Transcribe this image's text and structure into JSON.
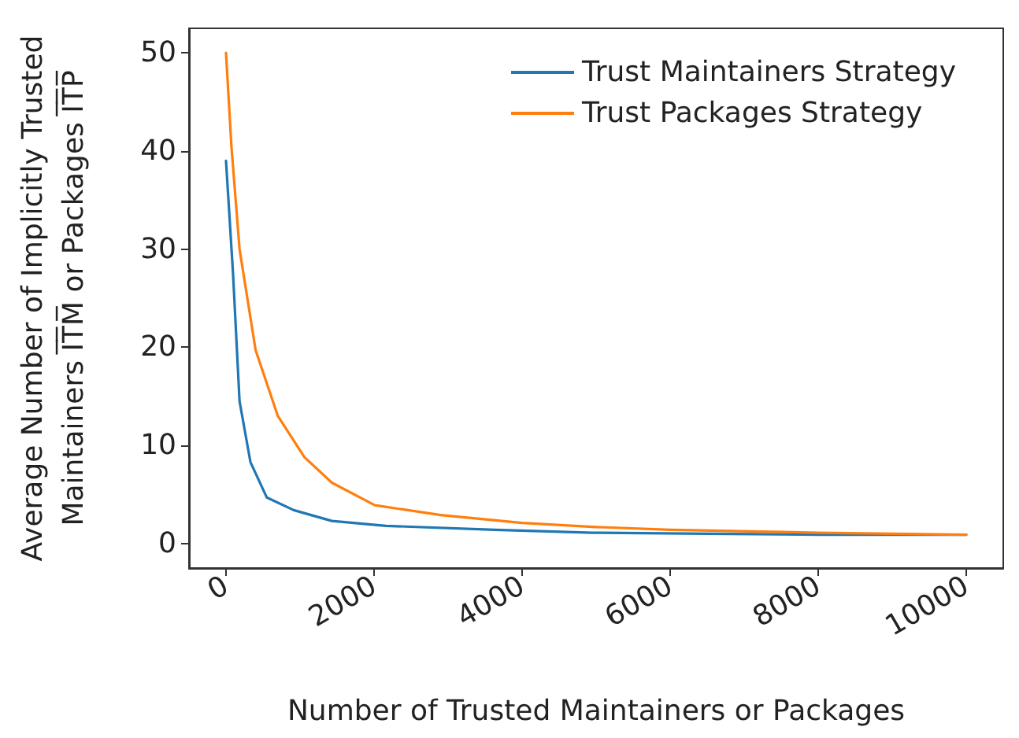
{
  "chart_data": {
    "type": "line",
    "xlabel": "Number of Trusted Maintainers or Packages",
    "ylabel": "Average Number of Implicitly Trusted\nMaintainers I̅T̅M̅ or Packages I̅T̅P̅",
    "xlim": [
      -500,
      10500
    ],
    "xticks": [
      0,
      2000,
      4000,
      6000,
      8000,
      10000
    ],
    "ylim": [
      -2.5,
      52.5
    ],
    "yticks": [
      0,
      10,
      20,
      30,
      40,
      50
    ],
    "grid": false,
    "legend": "top right",
    "marker": "none",
    "line_style": "solid",
    "series": [
      {
        "name": "Trust Maintainers Strategy",
        "color": "#1f77b4",
        "x": [
          0,
          95,
          183,
          330,
          550,
          915,
          1430,
          2160,
          3630,
          4950,
          6500,
          8000,
          10000
        ],
        "values": [
          39,
          27.5,
          14.5,
          8.3,
          4.7,
          3.4,
          2.3,
          1.8,
          1.4,
          1.1,
          1.0,
          0.9,
          0.9
        ]
      },
      {
        "name": "Trust Packages Strategy",
        "color": "#ff7f0e",
        "x": [
          0,
          73,
          183,
          400,
          700,
          1060,
          1430,
          2010,
          2900,
          4000,
          4950,
          6000,
          8000,
          10000
        ],
        "values": [
          50,
          40.5,
          30,
          19.7,
          13,
          8.8,
          6.2,
          3.9,
          2.9,
          2.1,
          1.7,
          1.4,
          1.1,
          0.9
        ]
      }
    ]
  }
}
